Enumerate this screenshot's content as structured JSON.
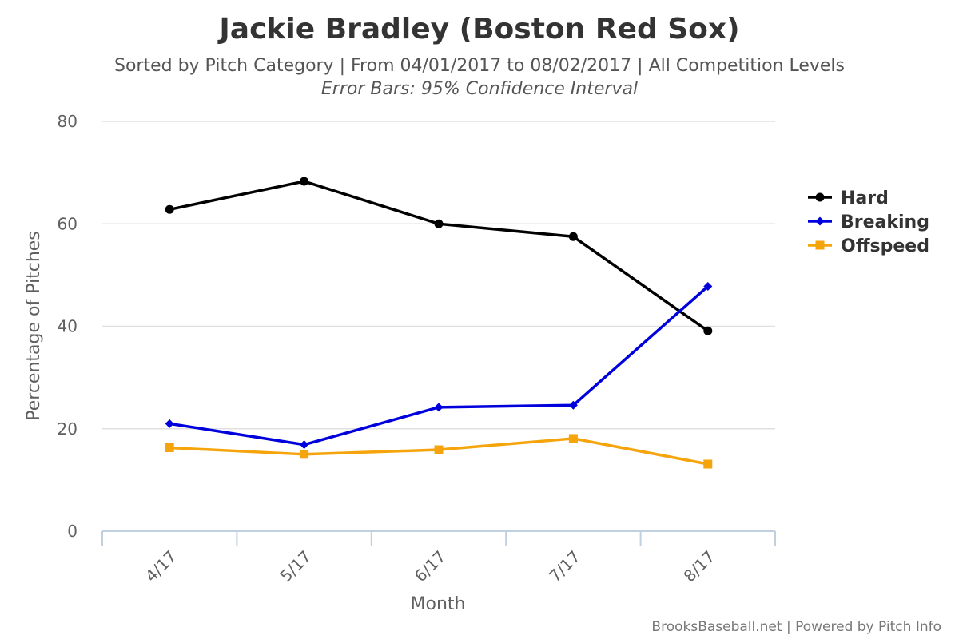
{
  "chart_data": {
    "type": "line",
    "title": "Jackie Bradley (Boston Red Sox)",
    "subtitle": "Sorted by Pitch Category | From 04/01/2017 to 08/02/2017 | All Competition Levels",
    "subtitle2": "Error Bars: 95% Confidence Interval",
    "xlabel": "Month",
    "ylabel": "Percentage of Pitches",
    "categories": [
      "4/17",
      "5/17",
      "6/17",
      "7/17",
      "8/17"
    ],
    "ylim": [
      0,
      80
    ],
    "yticks": [
      0,
      20,
      40,
      60,
      80
    ],
    "grid": true,
    "legend_position": "right",
    "series": [
      {
        "name": "Hard",
        "color": "#000000",
        "marker": "circle",
        "values": [
          62.8,
          68.3,
          60.0,
          57.5,
          39.1
        ]
      },
      {
        "name": "Breaking",
        "color": "#0000dd",
        "marker": "diamond",
        "values": [
          21.0,
          16.9,
          24.2,
          24.6,
          47.8
        ]
      },
      {
        "name": "Offspeed",
        "color": "#f5a40c",
        "marker": "square",
        "values": [
          16.3,
          15.0,
          15.9,
          18.1,
          13.1
        ]
      }
    ],
    "credits": "BrooksBaseball.net | Powered by Pitch Info"
  }
}
